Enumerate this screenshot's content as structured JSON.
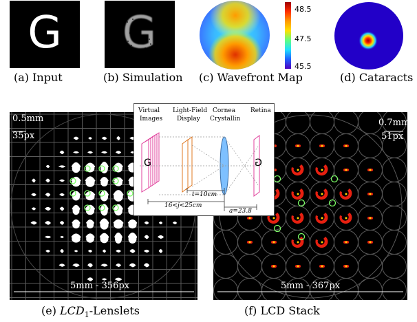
{
  "panels": {
    "a": {
      "caption": "(a) Input",
      "glyph": "G"
    },
    "b": {
      "caption": "(b) Simulation",
      "glyph": "G"
    },
    "c": {
      "caption": "(c) Wavefront Map",
      "colorbar_ticks": [
        "48.5",
        "47.5",
        "45.5"
      ]
    },
    "d": {
      "caption": "(d) Cataracts"
    },
    "e": {
      "caption_prefix": "(e) ",
      "caption_math": "LCD",
      "caption_sub": "1",
      "caption_suffix": "-Lenslets",
      "scale_top": "0.5mm",
      "scale_top_px": "35px",
      "scale_bottom": "5mm - 356px"
    },
    "f": {
      "caption": "(f) LCD Stack",
      "scale_top": "0.7mm",
      "scale_top_px": "51px",
      "scale_bottom": "5mm - 367px"
    }
  },
  "inset": {
    "labels": {
      "virtual_images": [
        "Virtual",
        "Images"
      ],
      "light_field_display": [
        "Light-Field",
        "Display"
      ],
      "cornea": [
        "Cornea",
        "Crystallin"
      ],
      "retina": "Retina",
      "glyph": "G",
      "t": "t=10cm",
      "range": "16<j<25cm",
      "a": "a=23.8"
    }
  },
  "colors": {
    "wavefront_top": "#1e7cff",
    "wavefront_mid": "#35e0ff",
    "wavefront_bottom": "#ff3a00",
    "cataract_bg": "#2200c8",
    "lenslet_red": "#e82010",
    "marker_green": "#7cff66"
  }
}
